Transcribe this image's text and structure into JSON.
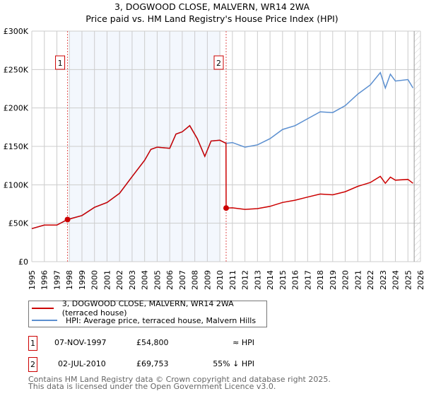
{
  "title": "3, DOGWOOD CLOSE, MALVERN, WR14 2WA",
  "subtitle": "Price paid vs. HM Land Registry's House Price Index (HPI)",
  "chart_data": {
    "type": "line",
    "title": "3, DOGWOOD CLOSE, MALVERN, WR14 2WA",
    "subtitle": "Price paid vs. HM Land Registry's House Price Index (HPI)",
    "xlim": [
      1995,
      2026
    ],
    "ylim": [
      0,
      300000
    ],
    "x_ticks": [
      "1995",
      "1996",
      "1997",
      "1998",
      "1999",
      "2000",
      "2001",
      "2002",
      "2003",
      "2004",
      "2005",
      "2006",
      "2007",
      "2008",
      "2009",
      "2010",
      "2011",
      "2012",
      "2013",
      "2014",
      "2015",
      "2016",
      "2017",
      "2018",
      "2019",
      "2020",
      "2021",
      "2022",
      "2023",
      "2024",
      "2025",
      "2026"
    ],
    "y_ticks": [
      {
        "v": 0,
        "label": "£0"
      },
      {
        "v": 50000,
        "label": "£50K"
      },
      {
        "v": 100000,
        "label": "£100K"
      },
      {
        "v": 150000,
        "label": "£150K"
      },
      {
        "v": 200000,
        "label": "£200K"
      },
      {
        "v": 250000,
        "label": "£250K"
      },
      {
        "v": 300000,
        "label": "£300K"
      }
    ],
    "grid": true,
    "shaded_range": [
      1998,
      2010
    ],
    "hatched_from": 2025.5,
    "series": [
      {
        "name": "3, DOGWOOD CLOSE, MALVERN, WR14 2WA (terraced house)",
        "color": "#cc0000",
        "points": [
          [
            1995,
            43000
          ],
          [
            1996,
            47600
          ],
          [
            1997,
            47600
          ],
          [
            1997.85,
            54800
          ],
          [
            1999,
            60000
          ],
          [
            2000,
            70700
          ],
          [
            2001,
            77000
          ],
          [
            2002,
            89000
          ],
          [
            2003,
            110600
          ],
          [
            2004,
            132000
          ],
          [
            2004.5,
            146000
          ],
          [
            2005,
            149000
          ],
          [
            2006,
            147500
          ],
          [
            2006.5,
            166000
          ],
          [
            2007,
            169000
          ],
          [
            2007.6,
            177000
          ],
          [
            2008.2,
            160000
          ],
          [
            2008.8,
            137000
          ],
          [
            2009.3,
            157000
          ],
          [
            2010,
            158000
          ],
          [
            2010.49,
            154000
          ],
          [
            2010.5,
            69753
          ],
          [
            2011,
            70000
          ],
          [
            2012,
            68000
          ],
          [
            2013,
            69000
          ],
          [
            2014,
            72000
          ],
          [
            2015,
            77000
          ],
          [
            2016,
            80000
          ],
          [
            2017,
            84000
          ],
          [
            2018,
            88000
          ],
          [
            2019,
            87000
          ],
          [
            2020,
            91000
          ],
          [
            2021,
            98000
          ],
          [
            2022,
            103000
          ],
          [
            2022.8,
            111000
          ],
          [
            2023.2,
            102000
          ],
          [
            2023.6,
            110000
          ],
          [
            2024,
            106000
          ],
          [
            2025,
            107000
          ],
          [
            2025.4,
            102000
          ]
        ]
      },
      {
        "name": "HPI: Average price, terraced house, Malvern Hills",
        "color": "#5b8fd0",
        "points": [
          [
            1995,
            43000
          ],
          [
            1996,
            47600
          ],
          [
            1997,
            47600
          ],
          [
            1997.85,
            55000
          ],
          [
            1999,
            60000
          ],
          [
            2000,
            70700
          ],
          [
            2001,
            77000
          ],
          [
            2002,
            89000
          ],
          [
            2003,
            110600
          ],
          [
            2004,
            132000
          ],
          [
            2004.5,
            146000
          ],
          [
            2005,
            149000
          ],
          [
            2006,
            147500
          ],
          [
            2006.5,
            166000
          ],
          [
            2007,
            169000
          ],
          [
            2007.6,
            177000
          ],
          [
            2008.2,
            160000
          ],
          [
            2008.8,
            137000
          ],
          [
            2009.3,
            157000
          ],
          [
            2010,
            158000
          ],
          [
            2010.5,
            154000
          ],
          [
            2011,
            155000
          ],
          [
            2012,
            149000
          ],
          [
            2013,
            152000
          ],
          [
            2014,
            160000
          ],
          [
            2015,
            172000
          ],
          [
            2016,
            177000
          ],
          [
            2017,
            186000
          ],
          [
            2018,
            195000
          ],
          [
            2019,
            194000
          ],
          [
            2020,
            203000
          ],
          [
            2021,
            218000
          ],
          [
            2022,
            230000
          ],
          [
            2022.8,
            246000
          ],
          [
            2023.2,
            226000
          ],
          [
            2023.6,
            244000
          ],
          [
            2024,
            235000
          ],
          [
            2025,
            237000
          ],
          [
            2025.4,
            226000
          ]
        ]
      }
    ],
    "annotations": [
      {
        "label": "1",
        "x": 1997.85,
        "y": 54800
      },
      {
        "label": "2",
        "x": 2010.5,
        "y": 69753
      }
    ]
  },
  "legend": [
    {
      "label": "3, DOGWOOD CLOSE, MALVERN, WR14 2WA (terraced house)",
      "color": "#cc0000"
    },
    {
      "label": "HPI: Average price, terraced house, Malvern Hills",
      "color": "#5b8fd0"
    }
  ],
  "transactions": [
    {
      "num": "1",
      "date": "07-NOV-1997",
      "price": "£54,800",
      "hpi": "≈ HPI"
    },
    {
      "num": "2",
      "date": "02-JUL-2010",
      "price": "£69,753",
      "hpi": "55% ↓ HPI"
    }
  ],
  "footer": [
    "Contains HM Land Registry data © Crown copyright and database right 2025.",
    "This data is licensed under the Open Government Licence v3.0."
  ]
}
